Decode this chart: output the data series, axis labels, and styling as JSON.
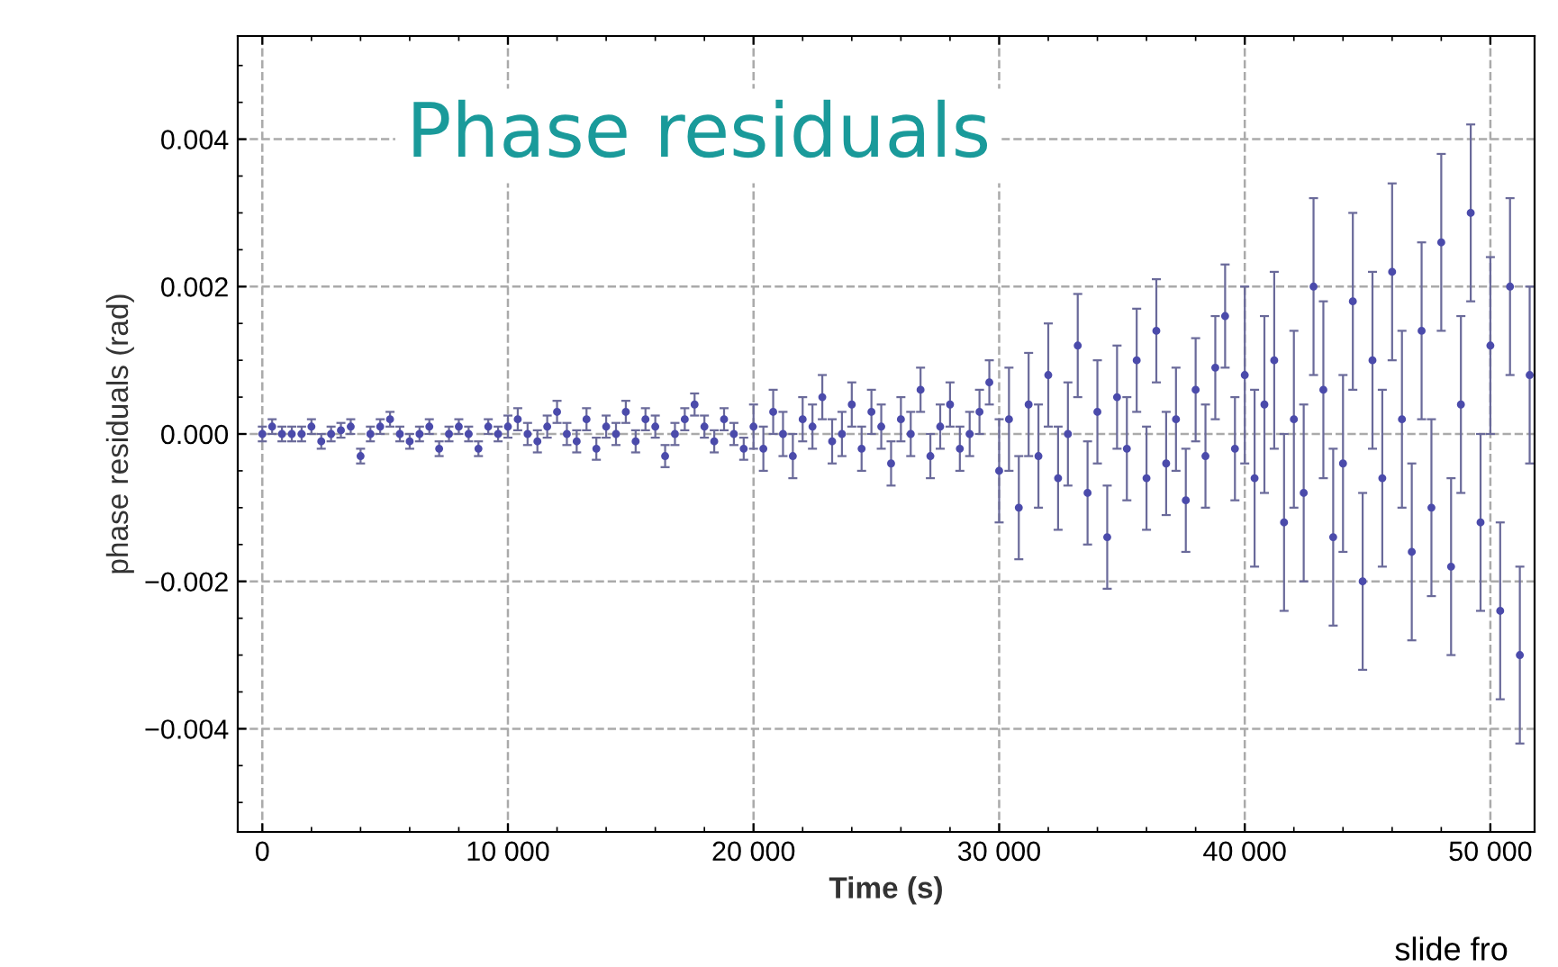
{
  "chart_data": {
    "type": "scatter",
    "title": "Phase residuals",
    "xlabel": "Time (s)",
    "ylabel": "phase residuals (rad)",
    "x": [
      0,
      400,
      800,
      1200,
      1600,
      2000,
      2400,
      2800,
      3200,
      3600,
      4000,
      4400,
      4800,
      5200,
      5600,
      6000,
      6400,
      6800,
      7200,
      7600,
      8000,
      8400,
      8800,
      9200,
      9600,
      10000,
      10400,
      10800,
      11200,
      11600,
      12000,
      12400,
      12800,
      13200,
      13600,
      14000,
      14400,
      14800,
      15200,
      15600,
      16000,
      16400,
      16800,
      17200,
      17600,
      18000,
      18400,
      18800,
      19200,
      19600,
      20000,
      20400,
      20800,
      21200,
      21600,
      22000,
      22400,
      22800,
      23200,
      23600,
      24000,
      24400,
      24800,
      25200,
      25600,
      26000,
      26400,
      26800,
      27200,
      27600,
      28000,
      28400,
      28800,
      29200,
      29600,
      30000,
      30400,
      30800,
      31200,
      31600,
      32000,
      32400,
      32800,
      33200,
      33600,
      34000,
      34400,
      34800,
      35200,
      35600,
      36000,
      36400,
      36800,
      37200,
      37600,
      38000,
      38400,
      38800,
      39200,
      39600,
      40000,
      40400,
      40800,
      41200,
      41600,
      42000,
      42400,
      42800,
      43200,
      43600,
      44000,
      44400,
      44800,
      45200,
      45600,
      46000,
      46400,
      46800,
      47200,
      47600,
      48000,
      48400,
      48800,
      49200,
      49600,
      50000,
      50400,
      50800,
      51200,
      51600
    ],
    "values": [
      0,
      0.0001,
      0,
      0,
      0,
      0.0001,
      -0.0001,
      0,
      5e-05,
      0.0001,
      -0.0003,
      0,
      0.0001,
      0.0002,
      0,
      -0.0001,
      0,
      0.0001,
      -0.0002,
      0,
      0.0001,
      0,
      -0.0002,
      0.0001,
      0,
      0.0001,
      0.0002,
      0,
      -0.0001,
      0.0001,
      0.0003,
      0,
      -0.0001,
      0.0002,
      -0.0002,
      0.0001,
      0,
      0.0003,
      -0.0001,
      0.0002,
      0.0001,
      -0.0003,
      0,
      0.0002,
      0.0004,
      0.0001,
      -0.0001,
      0.0002,
      0,
      -0.0002,
      0.0001,
      -0.0002,
      0.0003,
      0,
      -0.0003,
      0.0002,
      0.0001,
      0.0005,
      -0.0001,
      0,
      0.0004,
      -0.0002,
      0.0003,
      0.0001,
      -0.0004,
      0.0002,
      0,
      0.0006,
      -0.0003,
      0.0001,
      0.0004,
      -0.0002,
      0,
      0.0003,
      0.0007,
      -0.0005,
      0.0002,
      -0.001,
      0.0004,
      -0.0003,
      0.0008,
      -0.0006,
      0,
      0.0012,
      -0.0008,
      0.0003,
      -0.0014,
      0.0005,
      -0.0002,
      0.001,
      -0.0006,
      0.0014,
      -0.0004,
      0.0002,
      -0.0009,
      0.0006,
      -0.0003,
      0.0009,
      0.0016,
      -0.0002,
      0.0008,
      -0.0006,
      0.0004,
      0.001,
      -0.0012,
      0.0002,
      -0.0008,
      0.002,
      0.0006,
      -0.0014,
      -0.0004,
      0.0018,
      -0.002,
      0.001,
      -0.0006,
      0.0022,
      0.0002,
      -0.0016,
      0.0014,
      -0.001,
      0.0026,
      -0.0018,
      0.0004,
      0.003,
      -0.0012,
      0.0012,
      -0.0024,
      0.002,
      -0.003,
      0.0008
    ],
    "errors": [
      0.0001,
      0.0001,
      0.0001,
      0.0001,
      0.0001,
      0.0001,
      0.0001,
      0.0001,
      0.0001,
      0.0001,
      0.0001,
      0.0001,
      0.0001,
      0.0001,
      0.0001,
      0.0001,
      0.0001,
      0.0001,
      0.0001,
      0.0001,
      0.0001,
      0.0001,
      0.0001,
      0.0001,
      0.0001,
      0.00015,
      0.00015,
      0.00015,
      0.00015,
      0.00015,
      0.00015,
      0.00015,
      0.00015,
      0.00015,
      0.00015,
      0.00015,
      0.00015,
      0.00015,
      0.00015,
      0.00015,
      0.00015,
      0.00015,
      0.00015,
      0.00015,
      0.00015,
      0.00015,
      0.00015,
      0.00015,
      0.00015,
      0.00015,
      0.0003,
      0.0003,
      0.0003,
      0.0003,
      0.0003,
      0.0003,
      0.0003,
      0.0003,
      0.0003,
      0.0003,
      0.0003,
      0.0003,
      0.0003,
      0.0003,
      0.0003,
      0.0003,
      0.0003,
      0.0003,
      0.0003,
      0.0003,
      0.0003,
      0.0003,
      0.0003,
      0.0003,
      0.0003,
      0.0007,
      0.0007,
      0.0007,
      0.0007,
      0.0007,
      0.0007,
      0.0007,
      0.0007,
      0.0007,
      0.0007,
      0.0007,
      0.0007,
      0.0007,
      0.0007,
      0.0007,
      0.0007,
      0.0007,
      0.0007,
      0.0007,
      0.0007,
      0.0007,
      0.0007,
      0.0007,
      0.0007,
      0.0007,
      0.0012,
      0.0012,
      0.0012,
      0.0012,
      0.0012,
      0.0012,
      0.0012,
      0.0012,
      0.0012,
      0.0012,
      0.0012,
      0.0012,
      0.0012,
      0.0012,
      0.0012,
      0.0012,
      0.0012,
      0.0012,
      0.0012,
      0.0012,
      0.0012,
      0.0012,
      0.0012,
      0.0012,
      0.0012,
      0.0012,
      0.0012,
      0.0012,
      0.0012,
      0.0012
    ],
    "color": "#4b4bab",
    "marker": "circle",
    "grid": true,
    "legend": false,
    "xlim": [
      -1000,
      51800
    ],
    "ylim": [
      -0.0054,
      0.0054
    ],
    "xticks": [
      0,
      {
        "value": 10000,
        "label": "10 000"
      },
      {
        "value": 20000,
        "label": "20 000"
      },
      {
        "value": 30000,
        "label": "30 000"
      },
      {
        "value": 40000,
        "label": "40 000"
      },
      {
        "value": 50000,
        "label": "50 000"
      }
    ],
    "yticks": [
      {
        "value": -0.004,
        "label": "−0.004"
      },
      {
        "value": -0.002,
        "label": "−0.002"
      },
      {
        "value": 0,
        "label": "0.000"
      },
      {
        "value": 0.002,
        "label": "0.002"
      },
      {
        "value": 0.004,
        "label": "0.004"
      }
    ],
    "annotations": [
      "slide fro"
    ]
  }
}
